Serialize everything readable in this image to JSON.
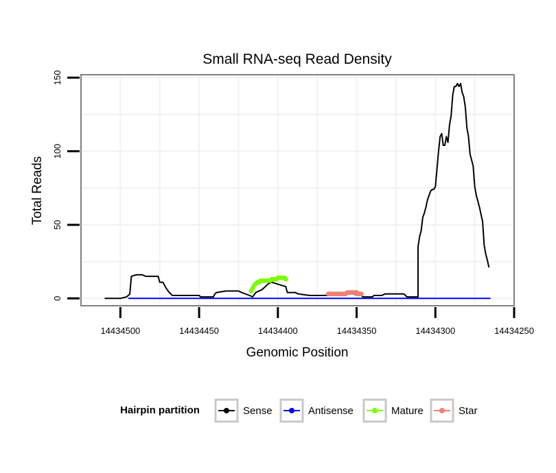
{
  "chart_data": {
    "type": "line",
    "title": "Small RNA-seq Read Density",
    "xlabel": "Genomic Position",
    "ylabel": "Total Reads",
    "xlim": [
      14434525,
      14434250
    ],
    "ylim": [
      -5,
      152
    ],
    "x_reversed": true,
    "x_ticks": [
      14434500,
      14434450,
      14434400,
      14434350,
      14434300,
      14434250
    ],
    "x_tick_labels": [
      "14434500",
      "14434450",
      "14434400",
      "14434350",
      "14434300",
      "14434250"
    ],
    "y_ticks": [
      0,
      50,
      100,
      150
    ],
    "y_tick_labels": [
      "0",
      "50",
      "100",
      "150"
    ],
    "grid": true,
    "legend": {
      "title": "Hairpin partition",
      "placement": "bottom",
      "entries": [
        {
          "name": "Sense",
          "color": "#000000"
        },
        {
          "name": "Antisense",
          "color": "#0000ff"
        },
        {
          "name": "Mature",
          "color": "#7cfc00"
        },
        {
          "name": "Star",
          "color": "#f08070"
        }
      ]
    },
    "series": [
      {
        "name": "Sense",
        "color": "#000000",
        "markers": false,
        "points": [
          [
            14434510,
            0
          ],
          [
            14434500,
            0
          ],
          [
            14434496,
            1
          ],
          [
            14434494,
            3
          ],
          [
            14434493,
            15
          ],
          [
            14434490,
            16
          ],
          [
            14434486,
            16
          ],
          [
            14434484,
            15
          ],
          [
            14434476,
            15
          ],
          [
            14434475,
            11
          ],
          [
            14434473,
            11
          ],
          [
            14434471,
            7
          ],
          [
            14434469,
            4
          ],
          [
            14434467,
            2
          ],
          [
            14434450,
            2
          ],
          [
            14434449,
            1
          ],
          [
            14434441,
            1
          ],
          [
            14434440,
            3
          ],
          [
            14434439,
            4
          ],
          [
            14434433,
            5
          ],
          [
            14434425,
            5
          ],
          [
            14434423,
            4
          ],
          [
            14434418,
            2
          ],
          [
            14434416,
            1
          ],
          [
            14434414,
            4
          ],
          [
            14434410,
            6
          ],
          [
            14434406,
            10
          ],
          [
            14434404,
            11
          ],
          [
            14434395,
            8
          ],
          [
            14434394,
            4
          ],
          [
            14434389,
            4
          ],
          [
            14434387,
            3
          ],
          [
            14434380,
            2
          ],
          [
            14434366,
            2
          ],
          [
            14434364,
            3
          ],
          [
            14434360,
            3
          ],
          [
            14434358,
            4
          ],
          [
            14434353,
            3
          ],
          [
            14434347,
            2
          ],
          [
            14434346,
            1
          ],
          [
            14434340,
            1
          ],
          [
            14434339,
            2
          ],
          [
            14434334,
            2
          ],
          [
            14434332,
            3
          ],
          [
            14434320,
            3
          ],
          [
            14434318,
            1
          ],
          [
            14434312,
            1
          ],
          [
            14434311,
            1
          ],
          [
            14434311,
            35
          ],
          [
            14434310,
            42
          ],
          [
            14434309,
            46
          ],
          [
            14434308,
            55
          ],
          [
            14434307,
            58
          ],
          [
            14434306,
            62
          ],
          [
            14434305,
            67
          ],
          [
            14434304,
            70
          ],
          [
            14434303,
            73
          ],
          [
            14434302,
            74
          ],
          [
            14434301,
            74
          ],
          [
            14434300,
            76
          ],
          [
            14434299,
            88
          ],
          [
            14434298,
            100
          ],
          [
            14434297,
            110
          ],
          [
            14434296,
            112
          ],
          [
            14434295,
            104
          ],
          [
            14434294,
            104
          ],
          [
            14434293,
            110
          ],
          [
            14434292,
            106
          ],
          [
            14434291,
            118
          ],
          [
            14434290,
            124
          ],
          [
            14434289,
            138
          ],
          [
            14434288,
            144
          ],
          [
            14434287,
            144
          ],
          [
            14434286,
            146
          ],
          [
            14434285,
            144
          ],
          [
            14434284,
            146
          ],
          [
            14434283,
            140
          ],
          [
            14434282,
            137
          ],
          [
            14434281,
            130
          ],
          [
            14434280,
            116
          ],
          [
            14434279,
            110
          ],
          [
            14434278,
            98
          ],
          [
            14434276,
            90
          ],
          [
            14434275,
            76
          ],
          [
            14434274,
            70
          ],
          [
            14434272,
            62
          ],
          [
            14434270,
            52
          ],
          [
            14434269,
            36
          ],
          [
            14434268,
            30
          ],
          [
            14434267,
            26
          ],
          [
            14434266,
            21
          ]
        ]
      },
      {
        "name": "Antisense",
        "color": "#0000ff",
        "markers": false,
        "points": [
          [
            14434495,
            0
          ],
          [
            14434265,
            0
          ]
        ]
      },
      {
        "name": "Mature",
        "color": "#7cfc00",
        "markers": true,
        "points": [
          [
            14434417,
            5
          ],
          [
            14434416,
            7
          ],
          [
            14434415,
            9
          ],
          [
            14434414,
            10
          ],
          [
            14434413,
            11
          ],
          [
            14434412,
            11
          ],
          [
            14434411,
            12
          ],
          [
            14434410,
            12
          ],
          [
            14434409,
            12
          ],
          [
            14434408,
            12
          ],
          [
            14434407,
            12
          ],
          [
            14434406,
            12
          ],
          [
            14434405,
            12
          ],
          [
            14434404,
            13
          ],
          [
            14434403,
            13
          ],
          [
            14434402,
            13
          ],
          [
            14434401,
            13
          ],
          [
            14434400,
            14
          ],
          [
            14434399,
            14
          ],
          [
            14434398,
            14
          ],
          [
            14434397,
            14
          ],
          [
            14434396,
            14
          ],
          [
            14434395,
            13
          ]
        ]
      },
      {
        "name": "Star",
        "color": "#f08070",
        "markers": true,
        "points": [
          [
            14434368,
            3
          ],
          [
            14434367,
            3
          ],
          [
            14434366,
            3
          ],
          [
            14434365,
            3
          ],
          [
            14434364,
            3
          ],
          [
            14434363,
            3
          ],
          [
            14434362,
            3
          ],
          [
            14434361,
            3
          ],
          [
            14434360,
            3
          ],
          [
            14434359,
            3
          ],
          [
            14434358,
            3
          ],
          [
            14434357,
            3
          ],
          [
            14434356,
            4
          ],
          [
            14434355,
            4
          ],
          [
            14434354,
            4
          ],
          [
            14434353,
            4
          ],
          [
            14434352,
            4
          ],
          [
            14434351,
            4
          ],
          [
            14434350,
            4
          ],
          [
            14434349,
            3
          ],
          [
            14434348,
            3
          ],
          [
            14434347,
            3
          ]
        ]
      }
    ]
  }
}
